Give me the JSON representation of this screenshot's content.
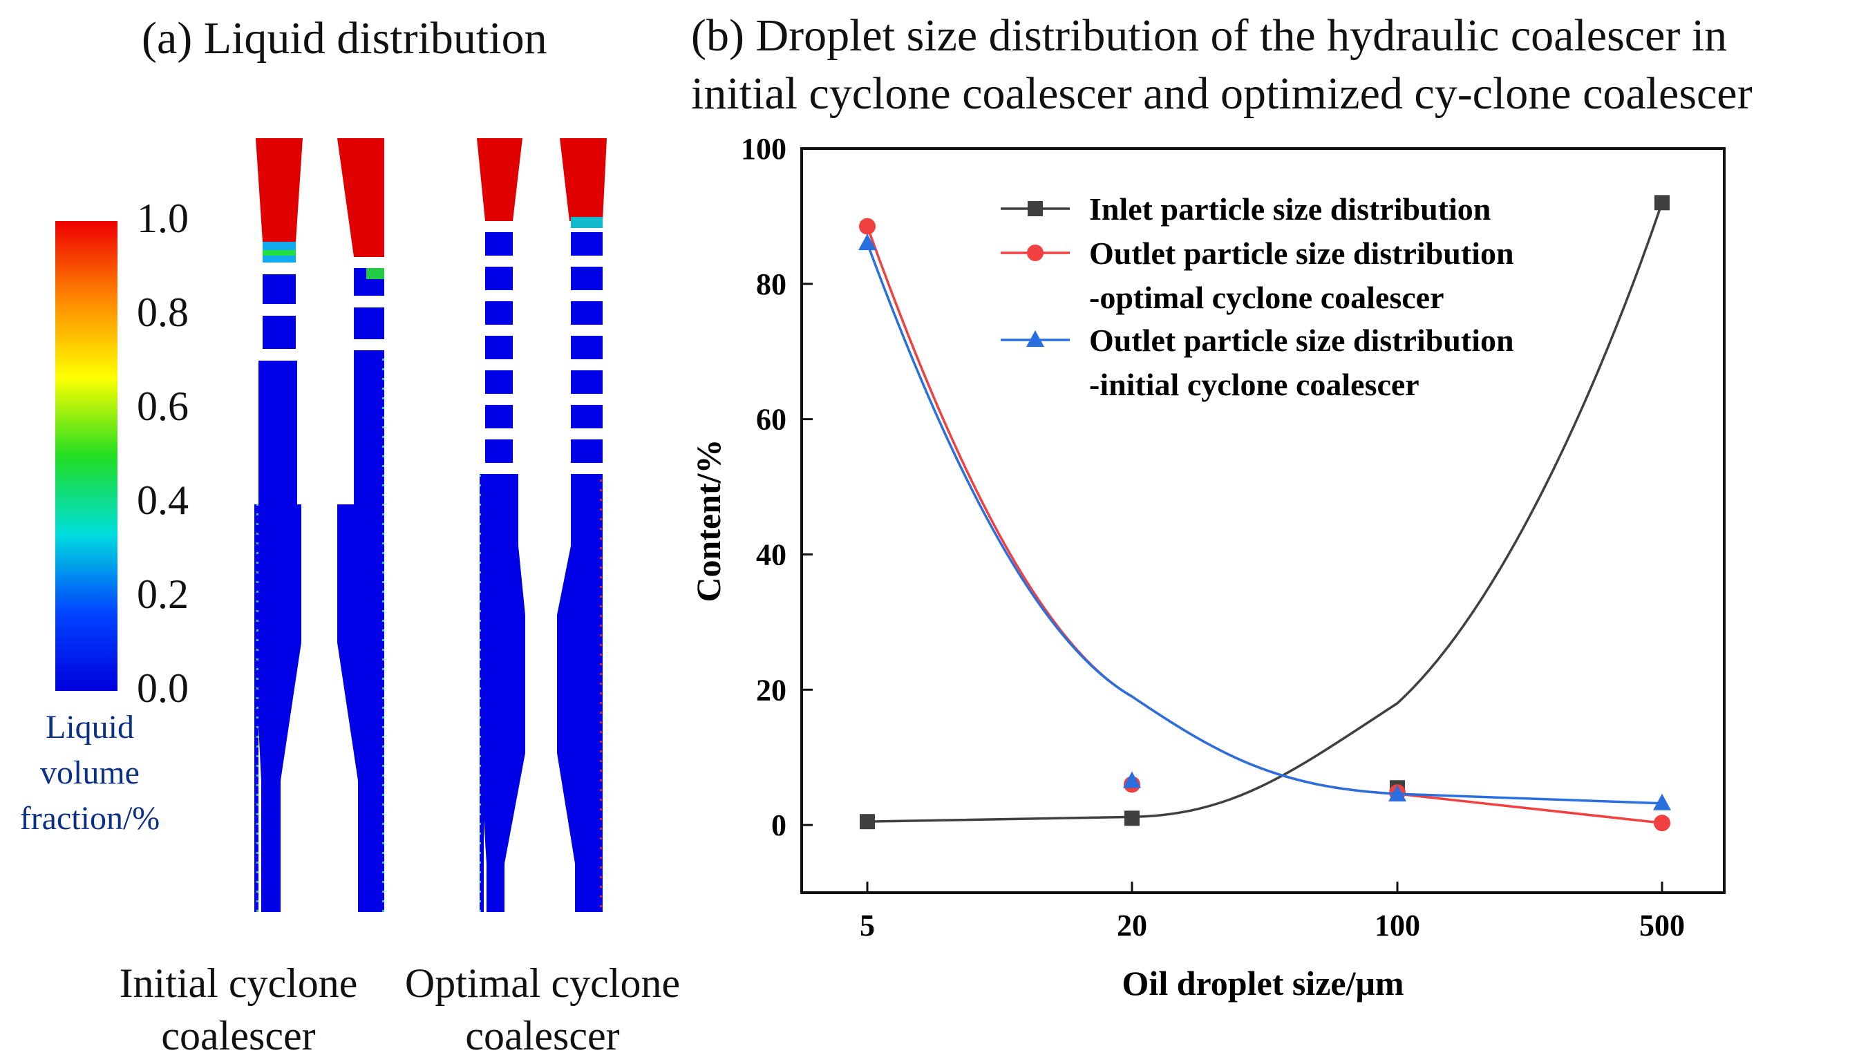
{
  "panel_a": {
    "title": "(a) Liquid distribution",
    "colorbar": {
      "ticks": [
        "1.0",
        "0.8",
        "0.6",
        "0.4",
        "0.2",
        "0.0"
      ],
      "label_lines": [
        "Liquid",
        "volume",
        "fraction/%"
      ],
      "colors": [
        "#ee0000",
        "#ff8800",
        "#ffff00",
        "#22dd22",
        "#00dddd",
        "#0044ff",
        "#0000dd"
      ]
    },
    "captions": {
      "initial": [
        "Initial cyclone",
        "coalescer"
      ],
      "optimal": [
        "Optimal cyclone",
        "coalescer"
      ]
    }
  },
  "panel_b": {
    "title_lines": [
      "(b) Droplet size distribution of the hydraulic coalescer in",
      "initial cyclone coalescer and optimized cy-clone coalescer"
    ]
  },
  "chart_data": {
    "type": "line",
    "title": "(b) Droplet size distribution of the hydraulic coalescer in initial cyclone coalescer and optimized cy-clone coalescer",
    "xlabel": "Oil droplet size/μm",
    "ylabel": "Content/%",
    "categories": [
      "5",
      "20",
      "100",
      "500"
    ],
    "ylim": [
      -10,
      100
    ],
    "yticks": [
      "0",
      "20",
      "40",
      "60",
      "80",
      "100"
    ],
    "legend_position": "top-right",
    "series": [
      {
        "name": "Inlet particle size distribution",
        "legend_lines": [
          "Inlet particle size distribution"
        ],
        "marker": "square",
        "color": "#404040",
        "values": [
          0.5,
          1.0,
          5.5,
          92
        ]
      },
      {
        "name": "Outlet particle size distribution -optimal cyclone coalescer",
        "legend_lines": [
          "Outlet particle size distribution",
          "-optimal cyclone coalescer"
        ],
        "marker": "circle",
        "color": "#f04040",
        "values": [
          88.5,
          6.0,
          4.8,
          0.3
        ]
      },
      {
        "name": "Outlet particle size distribution -initial cyclone coalescer",
        "legend_lines": [
          "Outlet particle size distribution",
          "-initial cyclone coalescer"
        ],
        "marker": "triangle",
        "color": "#2a6fe0",
        "values": [
          86,
          6.5,
          4.5,
          3.2
        ]
      }
    ]
  }
}
